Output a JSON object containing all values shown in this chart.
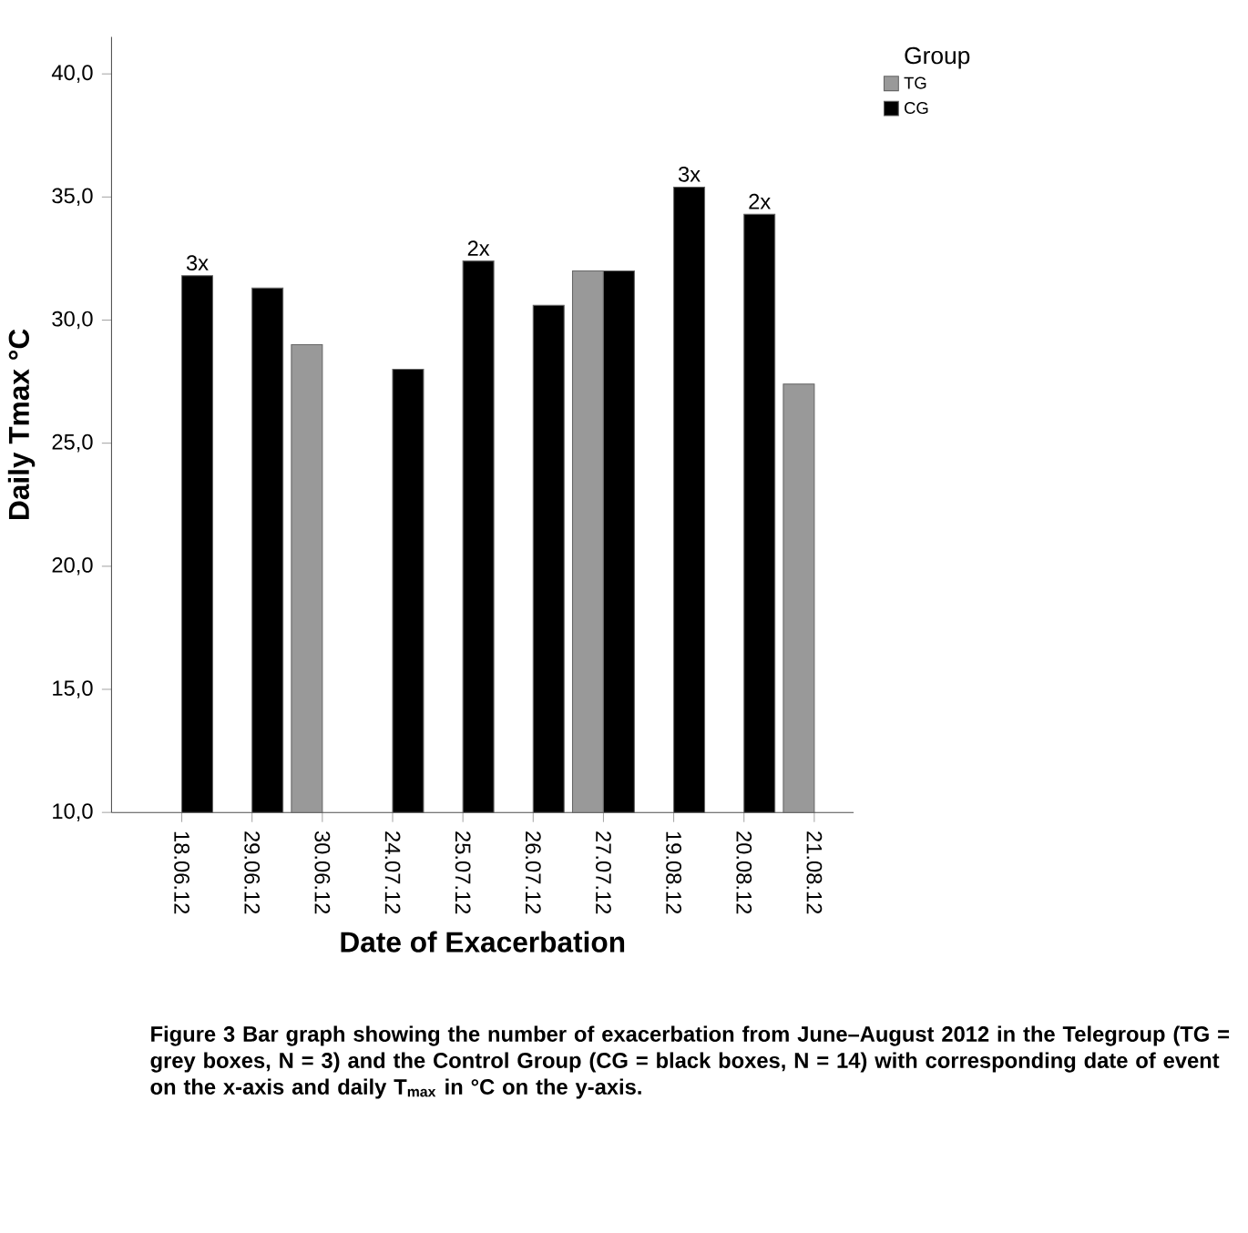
{
  "chart_data": {
    "type": "bar",
    "xlabel": "Date of Exacerbation",
    "ylabel": "Daily Tmax °C",
    "legend_title": "Group",
    "legend": "top right",
    "categories": [
      "18.06.12",
      "29.06.12",
      "30.06.12",
      "24.07.12",
      "25.07.12",
      "26.07.12",
      "27.07.12",
      "19.08.12",
      "20.08.12",
      "21.08.12"
    ],
    "series": [
      {
        "name": "TG",
        "color": "#999999",
        "values": [
          null,
          null,
          29.0,
          null,
          null,
          null,
          32.0,
          null,
          null,
          27.4
        ]
      },
      {
        "name": "CG",
        "color": "#000000",
        "values": [
          31.8,
          31.3,
          null,
          28.0,
          32.4,
          30.6,
          32.0,
          35.4,
          34.3,
          null
        ]
      }
    ],
    "ylim": [
      10,
      41.5
    ],
    "yticks": [
      {
        "value": 10,
        "label": "10,0"
      },
      {
        "value": 15,
        "label": "15,0"
      },
      {
        "value": 20,
        "label": "20,0"
      },
      {
        "value": 25,
        "label": "25,0"
      },
      {
        "value": 30,
        "label": "30,0"
      },
      {
        "value": 35,
        "label": "35,0"
      },
      {
        "value": 40,
        "label": "40,0"
      }
    ],
    "grid": false,
    "annotations": [
      {
        "text": "3x",
        "x": "18.06.12",
        "y": 31.8
      },
      {
        "text": "2x",
        "x": "25.07.12",
        "y": 32.4
      },
      {
        "text": "3x",
        "x": "19.08.12",
        "y": 35.4
      },
      {
        "text": "2x",
        "x": "20.08.12",
        "y": 34.3
      },
      "**Figure 3** Bar graph showing the number of exacerbation from June–August 2012 in the Telegroup (TG = grey boxes, N = 3) and the Control Group (CG = black boxes, N = 14) with corresponding date of event on the x-axis and daily T$_{max}$ in °C on the y-axis."
    ]
  }
}
